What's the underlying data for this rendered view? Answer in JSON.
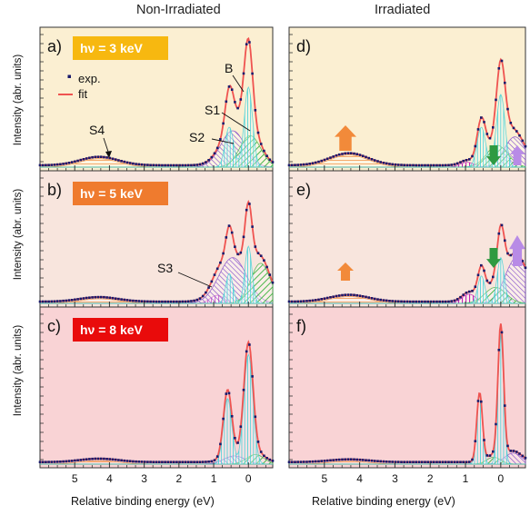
{
  "figure": {
    "col_titles": [
      "Non-Irradiated",
      "Irradiated"
    ],
    "colors": {
      "row_a": "#fbefd2",
      "row_b": "#f8e5dd",
      "row_c": "#f9d3d5",
      "badge_a": "#f7b810",
      "badge_b": "#ef7b2e",
      "badge_c": "#e90b0b",
      "data": "#1a1a6b",
      "fit": "#ef5350",
      "B": "#3fd0d6",
      "S1": "#39b23c",
      "S2": "#7f48c9",
      "S3": "#c025b6",
      "S4": "#f28a3a",
      "arrow_up_orange": "#f28a3a",
      "arrow_green": "#2f9a41",
      "arrow_purple": "#b88be6"
    }
  },
  "chart_data": [
    {
      "type": "line",
      "panel": "a",
      "column": "Non-Irradiated",
      "photon_energy": "hν = 3 keV",
      "xlabel": "",
      "ylabel": "Intensity (abr. units)",
      "xlim": [
        6.0,
        -0.7
      ],
      "xticks": [
        5,
        4,
        3,
        2,
        1,
        0
      ],
      "ylim": [
        0,
        1.08
      ],
      "legend": [
        "exp.",
        "fit"
      ],
      "peak_labels": [
        "B",
        "S1",
        "S2",
        "S4"
      ],
      "components": {
        "B": [
          {
            "center": 0.0,
            "height": 0.66,
            "width": 0.12
          },
          {
            "center": 0.55,
            "height": 0.33,
            "width": 0.12
          }
        ],
        "S1": [
          {
            "center": -0.05,
            "height": 0.26,
            "width": 0.3
          }
        ],
        "S2": [
          {
            "center": 0.45,
            "height": 0.3,
            "width": 0.35
          }
        ],
        "S4": [
          {
            "center": 4.3,
            "height": 0.07,
            "width": 0.55
          }
        ]
      }
    },
    {
      "type": "line",
      "panel": "b",
      "column": "Non-Irradiated",
      "photon_energy": "hν = 5 keV",
      "xlabel": "",
      "ylabel": "Intensity (abr. units)",
      "xlim": [
        6.0,
        -0.7
      ],
      "xticks": [
        5,
        4,
        3,
        2,
        1,
        0
      ],
      "ylim": [
        0,
        1.08
      ],
      "peak_labels": [
        "S3"
      ],
      "components": {
        "B": [
          {
            "center": 0.0,
            "height": 0.5,
            "width": 0.1
          },
          {
            "center": 0.55,
            "height": 0.26,
            "width": 0.1
          }
        ],
        "S1": [
          {
            "center": -0.35,
            "height": 0.35,
            "width": 0.28
          }
        ],
        "S2": [
          {
            "center": 0.45,
            "height": 0.4,
            "width": 0.4
          }
        ],
        "S3": [
          {
            "center": 0.9,
            "height": 0.07,
            "width": 0.2
          }
        ],
        "S4": [
          {
            "center": 4.3,
            "height": 0.04,
            "width": 0.55
          }
        ]
      }
    },
    {
      "type": "line",
      "panel": "c",
      "column": "Non-Irradiated",
      "photon_energy": "hν = 8 keV",
      "xlabel": "Relative binding energy (eV)",
      "ylabel": "Intensity (abr. units)",
      "xlim": [
        6.0,
        -0.7
      ],
      "xticks": [
        5,
        4,
        3,
        2,
        1,
        0
      ],
      "ylim": [
        0,
        1.08
      ],
      "components": {
        "B": [
          {
            "center": 0.0,
            "height": 0.8,
            "width": 0.13
          },
          {
            "center": 0.6,
            "height": 0.48,
            "width": 0.12
          }
        ],
        "S1": [
          {
            "center": -0.2,
            "height": 0.07,
            "width": 0.25
          }
        ],
        "S2": [
          {
            "center": 0.4,
            "height": 0.06,
            "width": 0.3
          }
        ],
        "S4": [
          {
            "center": 4.3,
            "height": 0.025,
            "width": 0.55
          }
        ]
      }
    },
    {
      "type": "line",
      "panel": "d",
      "column": "Irradiated",
      "xlabel": "",
      "ylabel": "",
      "xlim": [
        6.0,
        -0.7
      ],
      "xticks": [
        5,
        4,
        3,
        2,
        1,
        0
      ],
      "ylim": [
        0,
        1.08
      ],
      "components": {
        "B": [
          {
            "center": 0.0,
            "height": 0.6,
            "width": 0.12
          },
          {
            "center": 0.55,
            "height": 0.33,
            "width": 0.12
          }
        ],
        "S1": [
          {
            "center": 0.1,
            "height": 0.18,
            "width": 0.3
          }
        ],
        "S2": [
          {
            "center": -0.4,
            "height": 0.25,
            "width": 0.3
          }
        ],
        "S3": [
          {
            "center": 0.95,
            "height": 0.04,
            "width": 0.2
          }
        ],
        "S4": [
          {
            "center": 4.3,
            "height": 0.1,
            "width": 0.55
          }
        ]
      },
      "annotations": [
        "S4 increase (orange up arrow)",
        "S1 decrease (green down arrow)",
        "S2 increase (purple up arrow)"
      ]
    },
    {
      "type": "line",
      "panel": "e",
      "column": "Irradiated",
      "xlabel": "",
      "ylabel": "",
      "xlim": [
        6.0,
        -0.7
      ],
      "xticks": [
        5,
        4,
        3,
        2,
        1,
        0
      ],
      "ylim": [
        0,
        1.08
      ],
      "components": {
        "B": [
          {
            "center": 0.0,
            "height": 0.4,
            "width": 0.1
          },
          {
            "center": 0.55,
            "height": 0.24,
            "width": 0.1
          }
        ],
        "S1": [
          {
            "center": 0.15,
            "height": 0.14,
            "width": 0.3
          }
        ],
        "S2": [
          {
            "center": -0.45,
            "height": 0.4,
            "width": 0.32
          }
        ],
        "S3": [
          {
            "center": 0.9,
            "height": 0.08,
            "width": 0.2
          }
        ],
        "S4": [
          {
            "center": 4.3,
            "height": 0.06,
            "width": 0.55
          }
        ]
      },
      "annotations": [
        "S4 increase (orange up arrow)",
        "S1 decrease (green down arrow)",
        "S2 increase (purple up arrow)"
      ]
    },
    {
      "type": "line",
      "panel": "f",
      "column": "Irradiated",
      "xlabel": "Relative binding energy (eV)",
      "ylabel": "",
      "xlim": [
        6.0,
        -0.7
      ],
      "xticks": [
        5,
        4,
        3,
        2,
        1,
        0
      ],
      "ylim": [
        0,
        1.08
      ],
      "components": {
        "B": [
          {
            "center": 0.0,
            "height": 0.95,
            "width": 0.08
          },
          {
            "center": 0.6,
            "height": 0.5,
            "width": 0.08
          }
        ],
        "S1": [
          {
            "center": 0.2,
            "height": 0.05,
            "width": 0.2
          }
        ],
        "S2": [
          {
            "center": -0.35,
            "height": 0.08,
            "width": 0.25
          }
        ],
        "S4": [
          {
            "center": 4.3,
            "height": 0.02,
            "width": 0.55
          }
        ]
      }
    }
  ]
}
